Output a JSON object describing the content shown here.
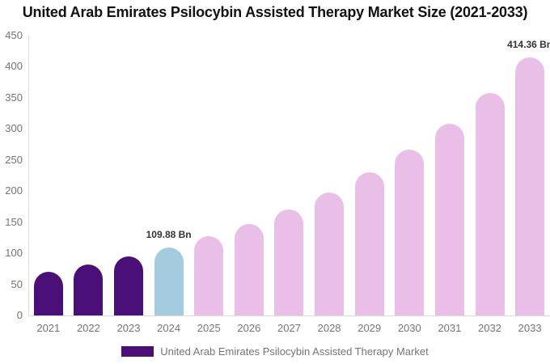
{
  "title": "United Arab Emirates Psilocybin Assisted Therapy Market Size (2021-2033)",
  "legend": {
    "label": "United Arab Emirates Psilocybin Assisted Therapy Market",
    "swatch_color": "#4B1077"
  },
  "colors": {
    "historical_bar": "#4B1077",
    "base_year_bar": "#A4CBDE",
    "forecast_bar": "#E9BEE7",
    "axis_line": "#dcdcdc",
    "tick_text": "#757575",
    "data_label_text": "#333333",
    "title_text": "#111111",
    "background": "#ffffff"
  },
  "chart_data": {
    "type": "bar",
    "title": "United Arab Emirates Psilocybin Assisted Therapy Market Size (2021-2033)",
    "series_name": "United Arab Emirates Psilocybin Assisted Therapy Market",
    "categories": [
      "2021",
      "2022",
      "2023",
      "2024",
      "2025",
      "2026",
      "2027",
      "2028",
      "2029",
      "2030",
      "2031",
      "2032",
      "2033"
    ],
    "values": [
      70.6,
      81.8,
      94.8,
      109.88,
      127.3,
      147.6,
      171.0,
      198.2,
      229.7,
      266.2,
      308.5,
      357.6,
      414.36
    ],
    "unit": "Bn",
    "bar_colors": [
      "#4B1077",
      "#4B1077",
      "#4B1077",
      "#A4CBDE",
      "#E9BEE7",
      "#E9BEE7",
      "#E9BEE7",
      "#E9BEE7",
      "#E9BEE7",
      "#E9BEE7",
      "#E9BEE7",
      "#E9BEE7",
      "#E9BEE7"
    ],
    "data_labels": {
      "2024": "109.88 Bn",
      "2033": "414.36 Bn"
    },
    "xlabel": "",
    "ylabel": "",
    "ylim": [
      0,
      450
    ],
    "y_ticks": [
      0,
      50,
      100,
      150,
      200,
      250,
      300,
      350,
      400,
      450
    ],
    "grid": false,
    "legend_position": "bottom"
  }
}
